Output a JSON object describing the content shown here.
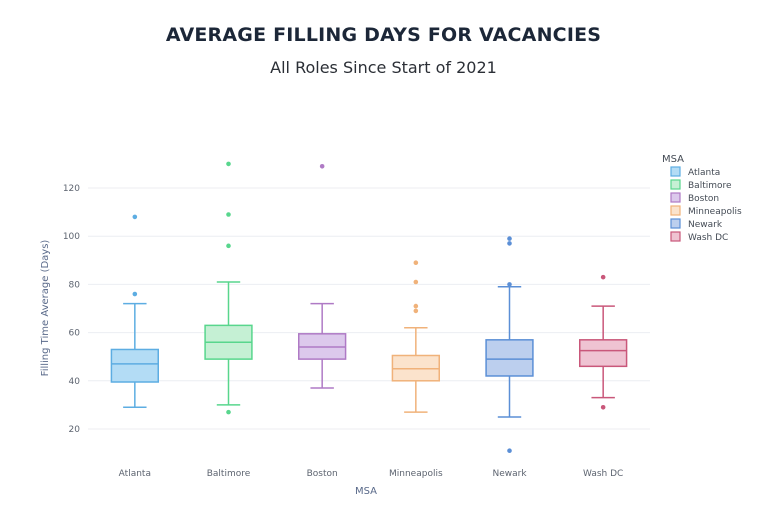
{
  "header": {
    "title": "AVERAGE FILLING DAYS FOR VACANCIES",
    "subtitle": "All Roles Since Start of 2021"
  },
  "chart_data": {
    "type": "box",
    "title": "AVERAGE FILLING DAYS FOR VACANCIES",
    "subtitle": "All Roles Since Start of 2021",
    "xlabel": "MSA",
    "ylabel": "Filling Time Average (Days)",
    "ylim": [
      5,
      137
    ],
    "yticks": [
      20,
      40,
      60,
      80,
      100,
      120
    ],
    "grid": true,
    "legend": {
      "title": "MSA",
      "position": "right"
    },
    "categories": [
      "Atlanta",
      "Baltimore",
      "Boston",
      "Minneapolis",
      "Newark",
      "Wash DC"
    ],
    "series": [
      {
        "name": "Atlanta",
        "color": "#5dade2",
        "fill": "#b3dcf5",
        "min": 29,
        "q1": 39.5,
        "median": 47,
        "q3": 53,
        "max": 72,
        "outliers": [
          76,
          108
        ]
      },
      {
        "name": "Baltimore",
        "color": "#58d68d",
        "fill": "#c5f0d4",
        "min": 30,
        "q1": 49,
        "median": 56,
        "q3": 63,
        "max": 81,
        "outliers": [
          27,
          96,
          109,
          130
        ]
      },
      {
        "name": "Boston",
        "color": "#af7ac5",
        "fill": "#dcc9ec",
        "min": 37,
        "q1": 49,
        "median": 54,
        "q3": 59.5,
        "max": 72,
        "outliers": [
          129
        ]
      },
      {
        "name": "Minneapolis",
        "color": "#f0b27a",
        "fill": "#fbe3cc",
        "min": 27,
        "q1": 40,
        "median": 45,
        "q3": 50.5,
        "max": 62,
        "outliers": [
          69,
          71,
          81,
          89
        ]
      },
      {
        "name": "Newark",
        "color": "#5b8fd6",
        "fill": "#bccfee",
        "min": 25,
        "q1": 42,
        "median": 49,
        "q3": 57,
        "max": 79,
        "outliers": [
          11,
          80,
          97,
          99
        ]
      },
      {
        "name": "Wash DC",
        "color": "#c9577a",
        "fill": "#efc3d2",
        "min": 33,
        "q1": 46,
        "median": 52.5,
        "q3": 57,
        "max": 71,
        "outliers": [
          29,
          83
        ]
      }
    ]
  }
}
